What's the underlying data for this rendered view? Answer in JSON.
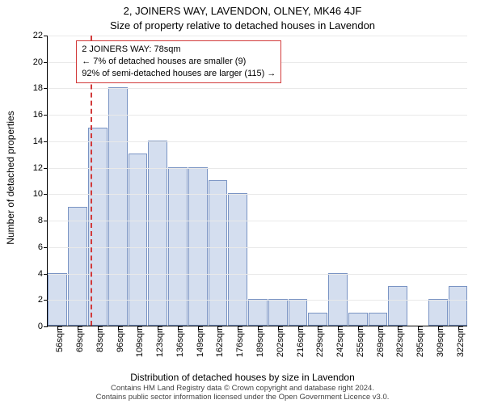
{
  "header": {
    "address_line": "2, JOINERS WAY, LAVENDON, OLNEY, MK46 4JF",
    "subtitle": "Size of property relative to detached houses in Lavendon"
  },
  "ylabel": "Number of detached properties",
  "xlabel": "Distribution of detached houses by size in Lavendon",
  "attribution": {
    "line1": "Contains HM Land Registry data © Crown copyright and database right 2024.",
    "line2": "Contains public sector information licensed under the Open Government Licence v3.0."
  },
  "chart": {
    "type": "histogram",
    "background_color": "#ffffff",
    "grid_color": "#e9e9e9",
    "axis_color": "#000000",
    "bar_fill": "#d4deef",
    "bar_stroke": "#7a94c4",
    "marker_color": "#d23a3a",
    "ylim": [
      0,
      22
    ],
    "yticks": [
      0,
      2,
      4,
      6,
      8,
      10,
      12,
      14,
      16,
      18,
      20,
      22
    ],
    "title_fontsize": 13,
    "label_fontsize": 12,
    "tick_fontsize": 11,
    "annot_fontsize": 11,
    "attribution_fontsize": 9.5,
    "xtick_labels": [
      "56sqm",
      "69sqm",
      "83sqm",
      "96sqm",
      "109sqm",
      "123sqm",
      "136sqm",
      "149sqm",
      "162sqm",
      "176sqm",
      "189sqm",
      "202sqm",
      "216sqm",
      "229sqm",
      "242sqm",
      "255sqm",
      "269sqm",
      "282sqm",
      "295sqm",
      "309sqm",
      "322sqm"
    ],
    "values": [
      4,
      9,
      15,
      18,
      13,
      14,
      12,
      12,
      11,
      10,
      2,
      2,
      2,
      1,
      4,
      1,
      1,
      3,
      0,
      2,
      3
    ],
    "marker_position": 1.65,
    "annotation": {
      "line1": "2 JOINERS WAY: 78sqm",
      "line2_prefix": "← ",
      "line2_text": "7% of detached houses are smaller (9)",
      "line3_text": "92% of semi-detached houses are larger (115)",
      "line3_suffix": " →"
    }
  }
}
